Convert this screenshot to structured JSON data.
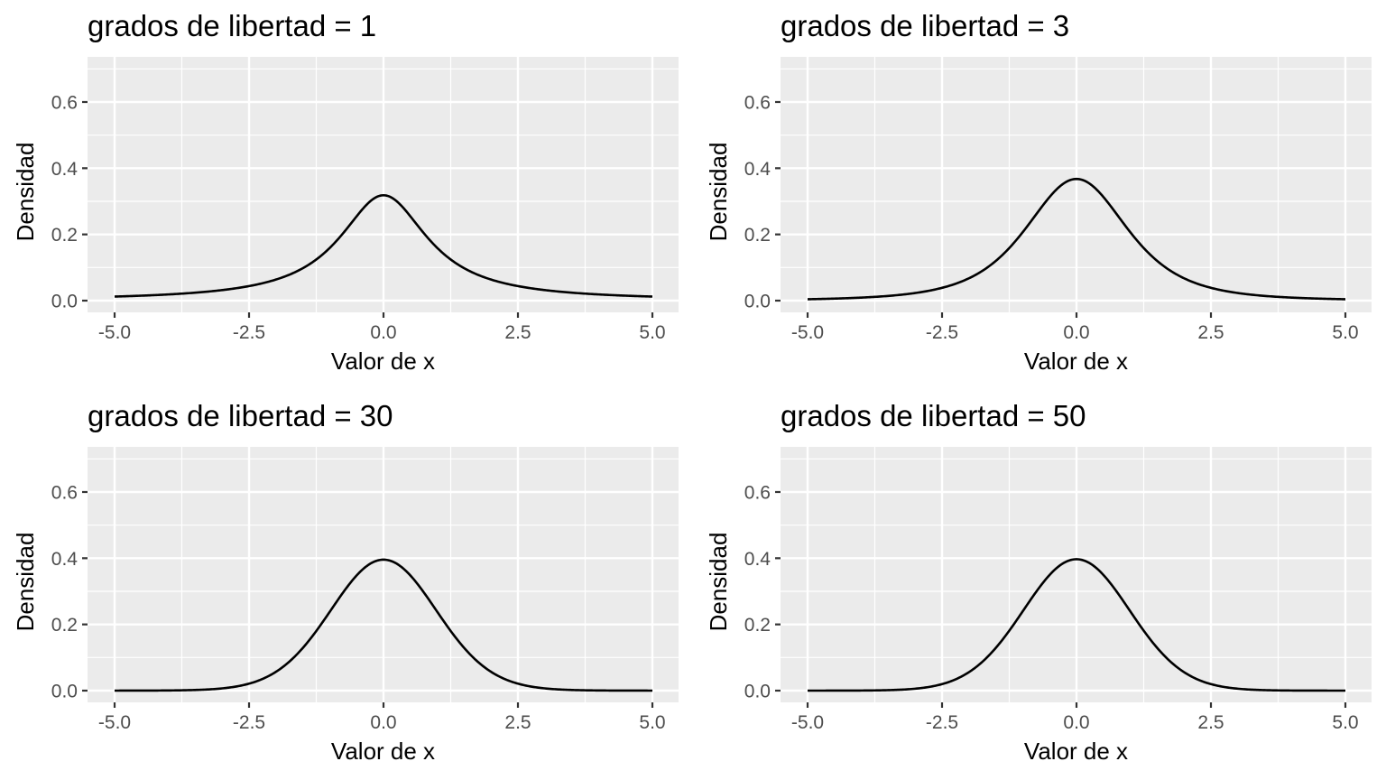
{
  "panels": [
    {
      "title": "grados de libertad = 1",
      "df": 1,
      "xlabel": "Valor de x",
      "ylabel": "Densidad"
    },
    {
      "title": "grados de libertad = 3",
      "df": 3,
      "xlabel": "Valor de x",
      "ylabel": "Densidad"
    },
    {
      "title": "grados de libertad = 30",
      "df": 30,
      "xlabel": "Valor de x",
      "ylabel": "Densidad"
    },
    {
      "title": "grados de libertad = 50",
      "df": 50,
      "xlabel": "Valor de x",
      "ylabel": "Densidad"
    }
  ],
  "x_ticks": [
    "-5.0",
    "-2.5",
    "0.0",
    "2.5",
    "5.0"
  ],
  "y_ticks": [
    "0.0",
    "0.2",
    "0.4",
    "0.6"
  ],
  "colors": {
    "panel_bg": "#ebebeb",
    "grid": "#ffffff",
    "line": "#000000",
    "tick_text": "#4d4d4d"
  },
  "chart_data": [
    {
      "type": "line",
      "title": "grados de libertad = 1",
      "xlabel": "Valor de x",
      "ylabel": "Densidad",
      "xlim": [
        -5,
        5
      ],
      "ylim": [
        0,
        0.7
      ],
      "grid": true,
      "x": [
        -5,
        -2.5,
        -1,
        0,
        1,
        2.5,
        5
      ],
      "y": [
        0.012,
        0.044,
        0.159,
        0.318,
        0.159,
        0.044,
        0.012
      ]
    },
    {
      "type": "line",
      "title": "grados de libertad = 3",
      "xlabel": "Valor de x",
      "ylabel": "Densidad",
      "xlim": [
        -5,
        5
      ],
      "ylim": [
        0,
        0.7
      ],
      "grid": true,
      "x": [
        -5,
        -2.5,
        -1,
        0,
        1,
        2.5,
        5
      ],
      "y": [
        0.004,
        0.035,
        0.207,
        0.368,
        0.207,
        0.035,
        0.004
      ]
    },
    {
      "type": "line",
      "title": "grados de libertad = 30",
      "xlabel": "Valor de x",
      "ylabel": "Densidad",
      "xlim": [
        -5,
        5
      ],
      "ylim": [
        0,
        0.7
      ],
      "grid": true,
      "x": [
        -5,
        -2.5,
        -1,
        0,
        1,
        2.5,
        5
      ],
      "y": [
        0.0,
        0.019,
        0.24,
        0.396,
        0.24,
        0.019,
        0.0
      ]
    },
    {
      "type": "line",
      "title": "grados de libertad = 50",
      "xlabel": "Valor de x",
      "ylabel": "Densidad",
      "xlim": [
        -5,
        5
      ],
      "ylim": [
        0,
        0.7
      ],
      "grid": true,
      "x": [
        -5,
        -2.5,
        -1,
        0,
        1,
        2.5,
        5
      ],
      "y": [
        0.0,
        0.018,
        0.241,
        0.397,
        0.241,
        0.018,
        0.0
      ]
    }
  ]
}
